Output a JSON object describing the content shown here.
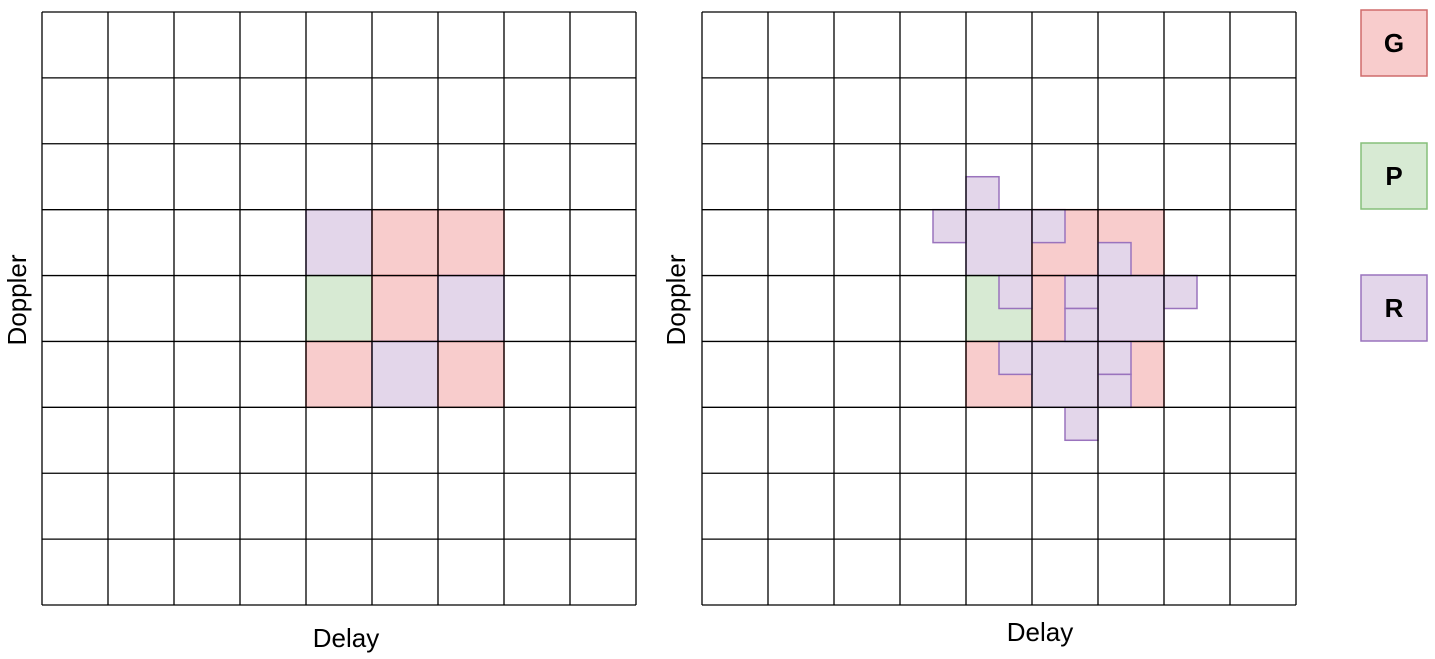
{
  "colors": {
    "guard": "#f8cccc",
    "guard_border": "#cf6b6b",
    "pilot": "#d7ead3",
    "pilot_border": "#86bf7a",
    "resource": "#e3d6ea",
    "resource_border": "#9a73bd",
    "grid": "#000000"
  },
  "legend": [
    {
      "key": "guard",
      "label": "G"
    },
    {
      "key": "pilot",
      "label": "P"
    },
    {
      "key": "resource",
      "label": "R"
    }
  ],
  "panels": [
    {
      "name": "left-grid",
      "xlabel": "Delay",
      "ylabel": "Doppler",
      "cells": [
        {
          "c": 4,
          "r": 3,
          "type": "resource"
        },
        {
          "c": 5,
          "r": 3,
          "type": "guard"
        },
        {
          "c": 6,
          "r": 3,
          "type": "guard"
        },
        {
          "c": 4,
          "r": 4,
          "type": "pilot"
        },
        {
          "c": 5,
          "r": 4,
          "type": "guard"
        },
        {
          "c": 6,
          "r": 4,
          "type": "resource"
        },
        {
          "c": 4,
          "r": 5,
          "type": "guard"
        },
        {
          "c": 5,
          "r": 5,
          "type": "resource"
        },
        {
          "c": 6,
          "r": 5,
          "type": "guard"
        }
      ],
      "fragments": []
    },
    {
      "name": "right-grid",
      "xlabel": "Delay",
      "ylabel": "Doppler",
      "cells": [
        {
          "c": 4,
          "r": 3,
          "type": "resource"
        },
        {
          "c": 5,
          "r": 3,
          "type": "guard"
        },
        {
          "c": 6,
          "r": 3,
          "type": "guard"
        },
        {
          "c": 4,
          "r": 4,
          "type": "pilot"
        },
        {
          "c": 5,
          "r": 4,
          "type": "guard"
        },
        {
          "c": 6,
          "r": 4,
          "type": "resource"
        },
        {
          "c": 4,
          "r": 5,
          "type": "guard"
        },
        {
          "c": 5,
          "r": 5,
          "type": "resource"
        },
        {
          "c": 6,
          "r": 5,
          "type": "guard"
        }
      ],
      "fragments": [
        {
          "c": 4,
          "r": 2.5,
          "w": 0.5,
          "h": 0.5
        },
        {
          "c": 3.5,
          "r": 3,
          "w": 0.5,
          "h": 0.5
        },
        {
          "c": 5,
          "r": 3,
          "w": 0.5,
          "h": 0.5
        },
        {
          "c": 4.5,
          "r": 4,
          "w": 0.5,
          "h": 0.5
        },
        {
          "c": 6,
          "r": 3.5,
          "w": 0.5,
          "h": 0.5
        },
        {
          "c": 5.5,
          "r": 4,
          "w": 0.5,
          "h": 0.5
        },
        {
          "c": 5.5,
          "r": 4.5,
          "w": 0.5,
          "h": 0.5
        },
        {
          "c": 7,
          "r": 4,
          "w": 0.5,
          "h": 0.5
        },
        {
          "c": 4.5,
          "r": 5,
          "w": 0.5,
          "h": 0.5
        },
        {
          "c": 6,
          "r": 5,
          "w": 0.5,
          "h": 0.5
        },
        {
          "c": 6,
          "r": 5.5,
          "w": 0.5,
          "h": 0.5
        },
        {
          "c": 5.5,
          "r": 6,
          "w": 0.5,
          "h": 0.5
        }
      ]
    }
  ]
}
